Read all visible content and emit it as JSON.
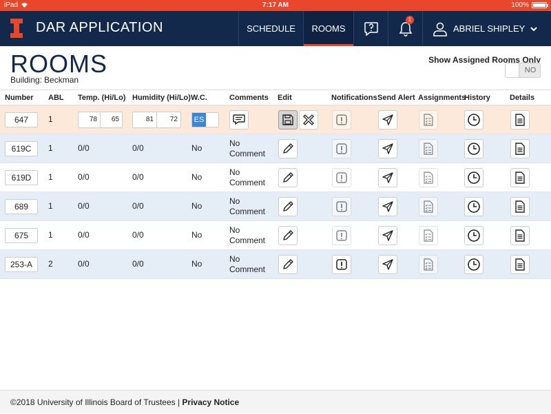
{
  "status_bar": {
    "device": "iPad",
    "time": "7:17 AM",
    "battery": "100%"
  },
  "nav": {
    "app_title": "DAR APPLICATION",
    "schedule": "SCHEDULE",
    "rooms": "ROOMS",
    "notification_count": "1",
    "user_name": "ABRIEL SHIPLEY"
  },
  "page": {
    "title": "ROOMS",
    "building_label": "Building:",
    "building_value": "Beckman",
    "assigned_only_label": "Show Assigned Rooms Only",
    "assigned_only_toggle": "NO"
  },
  "table": {
    "headers": [
      "Number",
      "ABL",
      "Temp. (Hi/Lo)",
      "Humidity (Hi/Lo)",
      "W.C.",
      "Comments",
      "Edit",
      "Notifications",
      "Send Alert",
      "Assignments",
      "History",
      "Details"
    ],
    "editing_row": {
      "number": "647",
      "abl": "1",
      "temp_hi": "78",
      "temp_lo": "65",
      "hum_hi": "81",
      "hum_lo": "72",
      "wc_toggle": "ES"
    },
    "rows": [
      {
        "number": "619C",
        "abl": "1",
        "temp": "0/0",
        "humidity": "0/0",
        "wc": "No",
        "comment_line1": "No",
        "comment_line2": "Comment"
      },
      {
        "number": "619D",
        "abl": "1",
        "temp": "0/0",
        "humidity": "0/0",
        "wc": "No",
        "comment_line1": "No",
        "comment_line2": "Comment"
      },
      {
        "number": "689",
        "abl": "1",
        "temp": "0/0",
        "humidity": "0/0",
        "wc": "No",
        "comment_line1": "No",
        "comment_line2": "Comment"
      },
      {
        "number": "675",
        "abl": "1",
        "temp": "0/0",
        "humidity": "0/0",
        "wc": "No",
        "comment_line1": "No",
        "comment_line2": "Comment"
      },
      {
        "number": "253-A",
        "abl": "2",
        "temp": "0/0",
        "humidity": "0/0",
        "wc": "No",
        "comment_line1": "No",
        "comment_line2": "Comment"
      }
    ]
  },
  "icons": {
    "edit": "pencil-icon",
    "notifications": "alert-icon",
    "send_alert": "send-icon",
    "assignments": "checklist-icon",
    "history": "clock-icon",
    "details": "document-icon",
    "save": "save-icon",
    "cancel": "close-icon",
    "comments": "speech-bubble-icon"
  },
  "footer": {
    "copyright": "©2018 University of Illinois Board of Trustees |",
    "privacy": "Privacy Notice"
  },
  "colors": {
    "nav_bg": "#13294b",
    "accent": "#e8472b",
    "row_alt": "#e5eef7",
    "editing_row": "#fde9d9"
  }
}
